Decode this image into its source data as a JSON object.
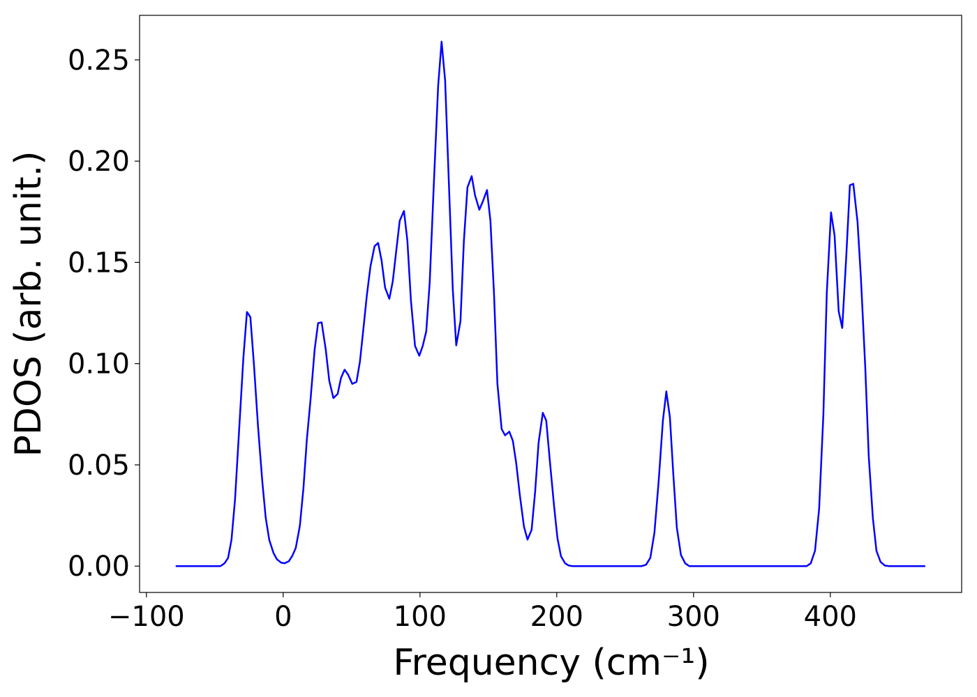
{
  "chart_data": {
    "type": "line",
    "xlabel": "Frequency (cm⁻¹)",
    "ylabel": "PDOS (arb. unit.)",
    "xlim": [
      -105,
      496
    ],
    "ylim": [
      -0.013,
      0.272
    ],
    "xticks": [
      {
        "value": -100,
        "label": "−100"
      },
      0,
      100,
      200,
      300,
      400
    ],
    "yticks": [
      {
        "value": 0,
        "label": "0.00"
      },
      {
        "value": 0.05,
        "label": "0.05"
      },
      {
        "value": 0.1,
        "label": "0.10"
      },
      {
        "value": 0.15,
        "label": "0.15"
      },
      {
        "value": 0.2,
        "label": "0.20"
      },
      {
        "value": 0.25,
        "label": "0.25"
      }
    ],
    "grid": false,
    "series": [
      {
        "color": "#0000ff",
        "x": [
          -78.6,
          -45.9,
          -42.9,
          -40.3,
          -37.8,
          -35.2,
          -29.1,
          -26.5,
          -24.0,
          -21.4,
          -18.4,
          -15.3,
          -12.8,
          -10.2,
          -7.1,
          -4.6,
          -1.5,
          1.0,
          4.1,
          6.6,
          9.2,
          12.2,
          14.8,
          17.3,
          19.9,
          23.0,
          25.5,
          28.1,
          31.1,
          33.7,
          36.7,
          39.8,
          42.3,
          44.9,
          47.4,
          50.5,
          53.6,
          56.1,
          58.7,
          61.2,
          63.8,
          66.8,
          69.4,
          71.9,
          74.5,
          77.6,
          80.1,
          82.7,
          85.2,
          88.3,
          90.8,
          93.4,
          96.4,
          99.5,
          102.0,
          104.6,
          107.1,
          110.2,
          113.3,
          115.8,
          118.4,
          120.9,
          124.0,
          126.5,
          129.6,
          132.1,
          134.7,
          137.8,
          140.3,
          143.4,
          145.9,
          149.0,
          151.5,
          154.1,
          156.6,
          159.7,
          162.2,
          165.3,
          167.9,
          170.4,
          173.0,
          176.0,
          178.6,
          181.6,
          184.2,
          186.7,
          189.8,
          192.3,
          194.9,
          198.0,
          200.5,
          203.1,
          206.1,
          208.7,
          211.7,
          262.2,
          265.3,
          268.4,
          271.4,
          274.5,
          277.6,
          280.1,
          282.7,
          285.2,
          287.8,
          290.8,
          293.9,
          296.9,
          382.7,
          385.7,
          388.8,
          391.8,
          394.9,
          397.4,
          400.5,
          403.1,
          406.1,
          408.7,
          411.7,
          414.3,
          416.8,
          419.9,
          422.4,
          425.5,
          428.1,
          431.1,
          433.7,
          436.7,
          439.8,
          442.9,
          469.4
        ],
        "values": [
          0,
          0,
          0.0014,
          0.004,
          0.013,
          0.033,
          0.103,
          0.1255,
          0.123,
          0.0997,
          0.069,
          0.042,
          0.024,
          0.013,
          0.0065,
          0.0034,
          0.0017,
          0.0014,
          0.0024,
          0.005,
          0.009,
          0.02,
          0.0385,
          0.0626,
          0.0815,
          0.107,
          0.12,
          0.1204,
          0.107,
          0.0915,
          0.083,
          0.085,
          0.093,
          0.097,
          0.0946,
          0.09,
          0.091,
          0.101,
          0.1176,
          0.134,
          0.148,
          0.158,
          0.1596,
          0.151,
          0.1375,
          0.132,
          0.1406,
          0.156,
          0.1706,
          0.1754,
          0.1606,
          0.131,
          0.1087,
          0.1039,
          0.1087,
          0.116,
          0.14,
          0.19,
          0.2373,
          0.259,
          0.2397,
          0.1933,
          0.1365,
          0.109,
          0.121,
          0.1606,
          0.187,
          0.1926,
          0.183,
          0.176,
          0.18,
          0.1857,
          0.1706,
          0.1348,
          0.0901,
          0.0677,
          0.0646,
          0.0664,
          0.0619,
          0.0506,
          0.0351,
          0.0196,
          0.0131,
          0.0179,
          0.0368,
          0.0609,
          0.0757,
          0.0719,
          0.0523,
          0.0299,
          0.0138,
          0.0048,
          0.0014,
          0.0003,
          0,
          0,
          0.0007,
          0.0041,
          0.0165,
          0.042,
          0.0719,
          0.0863,
          0.0736,
          0.0454,
          0.0189,
          0.0055,
          0.0014,
          0,
          0,
          0.0014,
          0.0076,
          0.0282,
          0.0746,
          0.1348,
          0.1747,
          0.1633,
          0.1259,
          0.1176,
          0.1537,
          0.1881,
          0.1888,
          0.1699,
          0.1417,
          0.0987,
          0.054,
          0.0237,
          0.0076,
          0.0021,
          0.0003,
          0,
          0
        ]
      }
    ]
  }
}
